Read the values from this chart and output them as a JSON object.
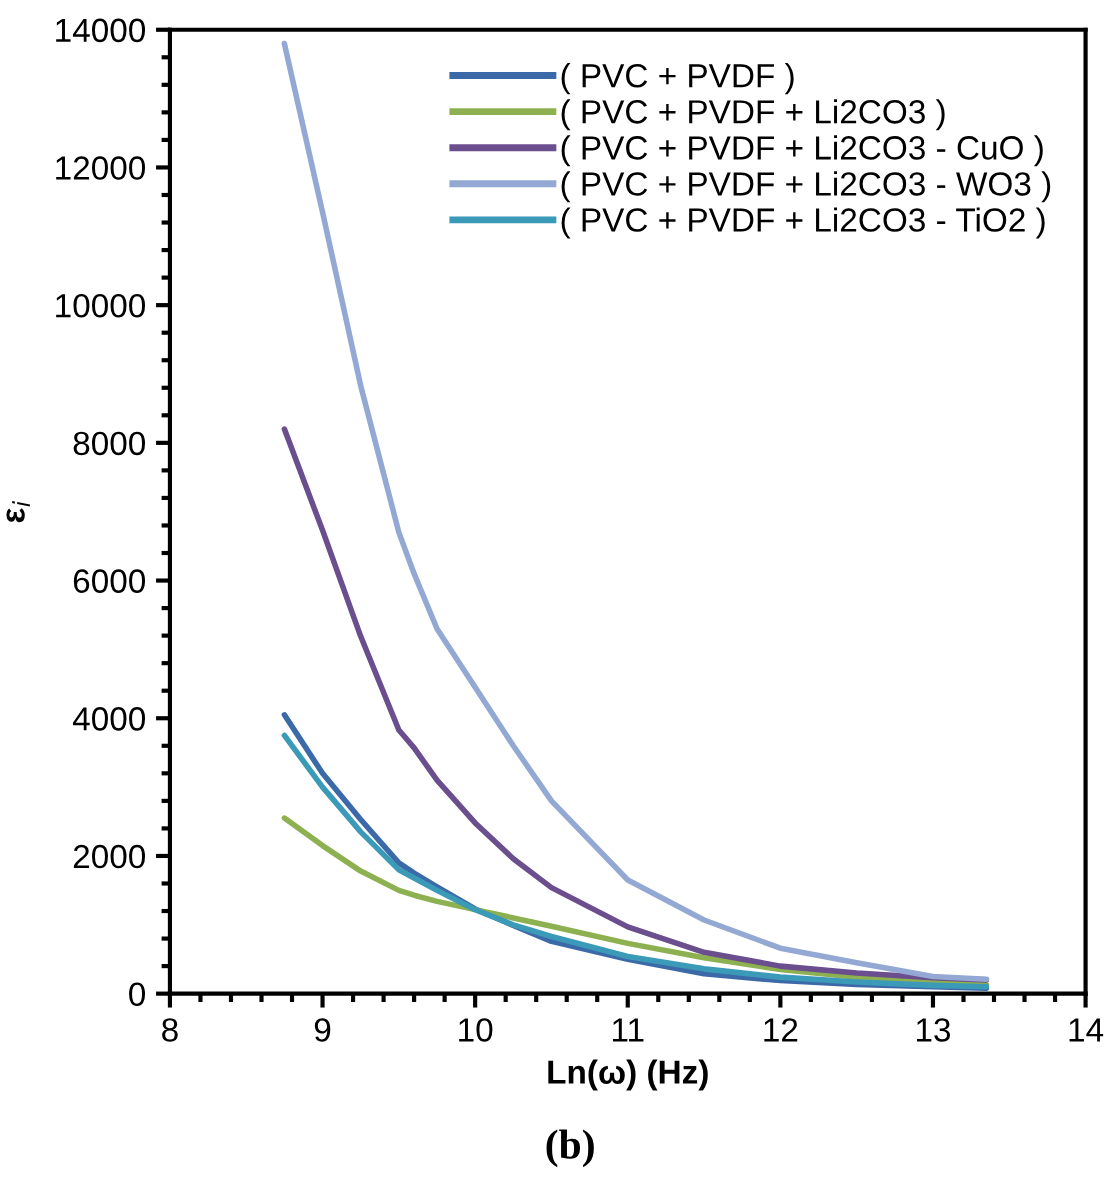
{
  "chart_data": {
    "type": "line",
    "xlabel": "Ln(ω) (Hz)",
    "ylabel": "ε$_{i}$",
    "annotations": [
      "(b)"
    ],
    "x": [
      8.75,
      9,
      9.25,
      9.5,
      9.6,
      9.75,
      10,
      10.25,
      10.5,
      11,
      11.5,
      12,
      12.5,
      13,
      13.35
    ],
    "series": [
      {
        "name": "( PVC + PVDF )",
        "color": "#3c6aa8",
        "values": [
          4050,
          3200,
          2530,
          1900,
          1750,
          1550,
          1230,
          990,
          760,
          500,
          290,
          190,
          135,
          100,
          80
        ]
      },
      {
        "name": "( PVC + PVDF + Li2CO3 )",
        "color": "#8db050",
        "values": [
          2550,
          2150,
          1780,
          1500,
          1430,
          1340,
          1220,
          1100,
          980,
          730,
          520,
          350,
          240,
          160,
          130
        ]
      },
      {
        "name": "( PVC + PVDF + Li2CO3 - CuO )",
        "color": "#6a4e8e",
        "values": [
          8200,
          6730,
          5190,
          3830,
          3570,
          3100,
          2480,
          1960,
          1540,
          970,
          600,
          400,
          300,
          230,
          200
        ]
      },
      {
        "name": "( PVC + PVDF + Li2CO3 - WO3 )",
        "color": "#93a9d3",
        "values": [
          13800,
          11350,
          8830,
          6700,
          6100,
          5300,
          4450,
          3600,
          2800,
          1650,
          1070,
          660,
          450,
          250,
          210
        ]
      },
      {
        "name": "( PVC + PVDF + Li2CO3 - TiO2 )",
        "color": "#3a9ab8",
        "values": [
          3750,
          3000,
          2350,
          1800,
          1680,
          1500,
          1220,
          1000,
          830,
          540,
          360,
          240,
          170,
          120,
          100
        ]
      }
    ],
    "xlim": [
      8,
      14
    ],
    "xticks": [
      8,
      9,
      10,
      11,
      12,
      13,
      14
    ],
    "ylim": [
      0,
      14000
    ],
    "yticks": [
      0,
      2000,
      4000,
      6000,
      8000,
      10000,
      12000,
      14000
    ],
    "grid": false,
    "legend": "top right",
    "marker": "none",
    "line_style": "solid"
  }
}
